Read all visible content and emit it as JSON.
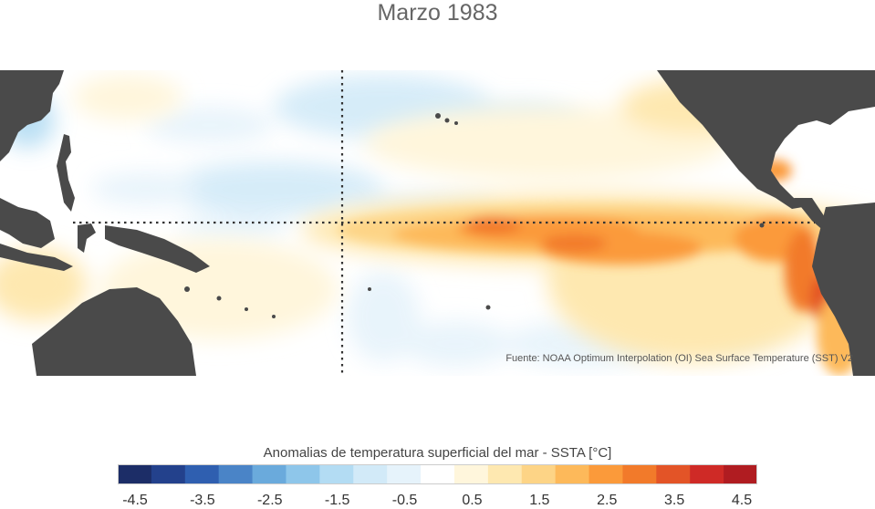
{
  "title": "Marzo 1983",
  "source": "Fuente: NOAA Optimum Interpolation (OI) Sea Surface Temperature (SST) V2",
  "colorbar": {
    "title": "Anomalias de temperatura superficial del mar - SSTA  [°C]",
    "colors": [
      "#1c2d67",
      "#23418c",
      "#2f5fb0",
      "#4a84c7",
      "#6aaadc",
      "#8ec6ea",
      "#b3dcf3",
      "#d2eaf8",
      "#e6f3fb",
      "#ffffff",
      "#fff6dc",
      "#fee8b0",
      "#fdd486",
      "#fdb95a",
      "#fb9a3a",
      "#f27a2a",
      "#e35427",
      "#cf2a26",
      "#b01c21"
    ],
    "tick_labels": [
      "-4.5",
      "-3.5",
      "-2.5",
      "-1.5",
      "-0.5",
      "0.5",
      "1.5",
      "2.5",
      "3.5",
      "4.5"
    ]
  },
  "map": {
    "land_color": "#4a4a4a",
    "ocean_base_color": "#ffffff",
    "reference_lines": [
      "equator",
      "dateline"
    ]
  }
}
